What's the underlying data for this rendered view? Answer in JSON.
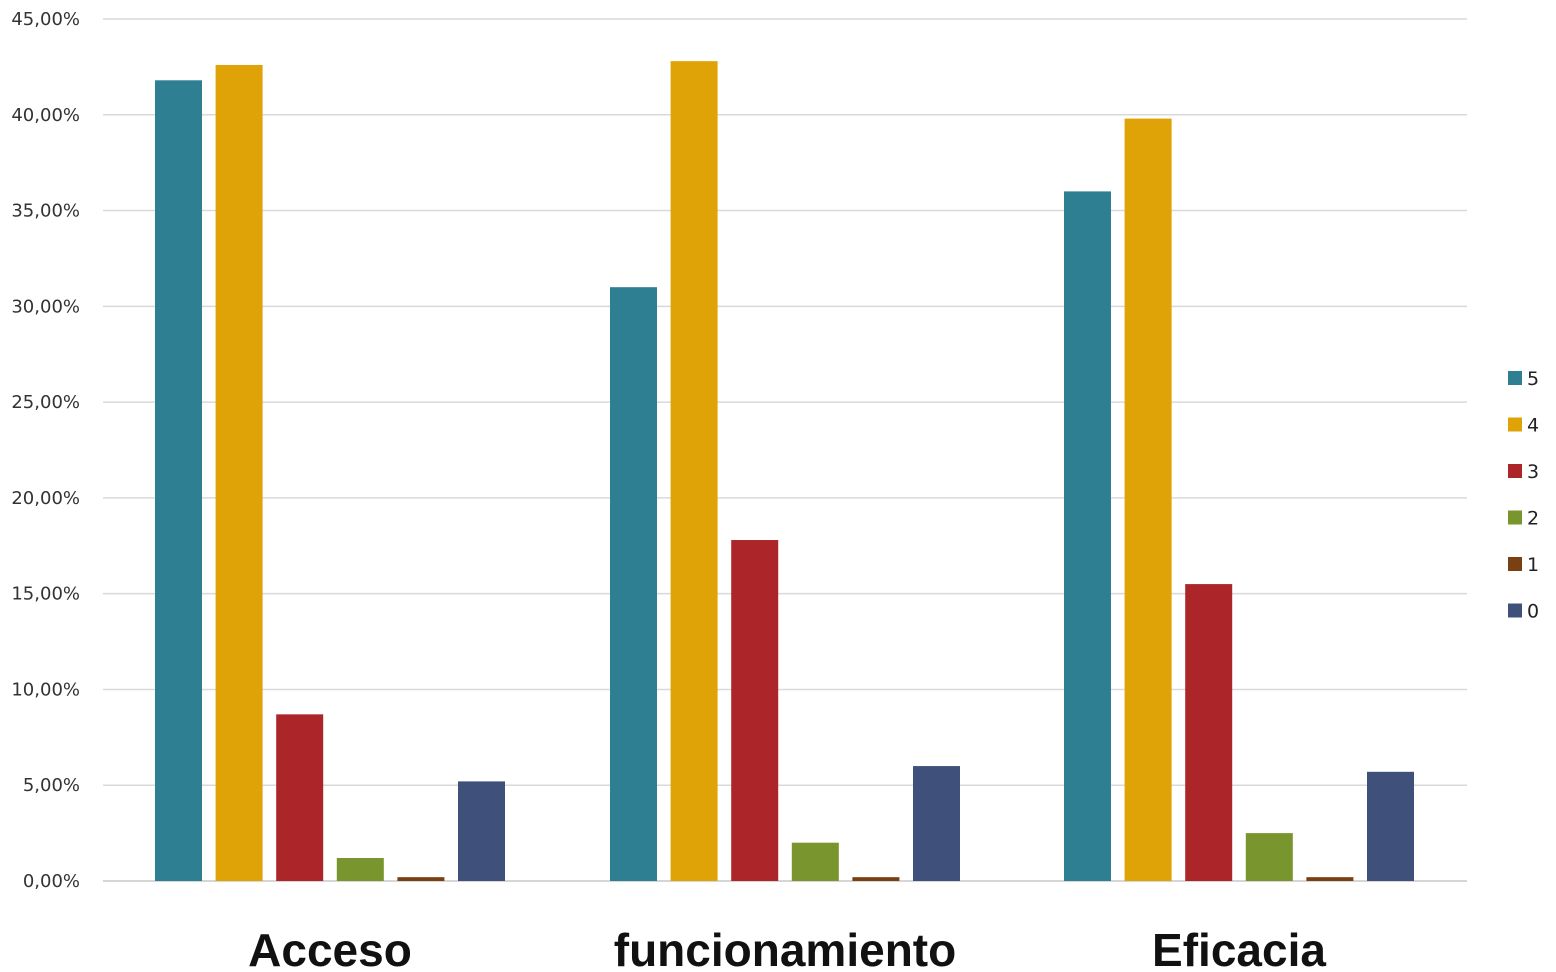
{
  "chart_data": {
    "type": "bar",
    "categories": [
      "Acceso",
      "funcionamiento",
      "Eficacia"
    ],
    "series": [
      {
        "name": "5",
        "color": "#2e7f92",
        "values": [
          41.8,
          31.0,
          36.0
        ]
      },
      {
        "name": "4",
        "color": "#e0a307",
        "values": [
          42.6,
          42.8,
          39.8
        ]
      },
      {
        "name": "3",
        "color": "#ab2529",
        "values": [
          8.7,
          17.8,
          15.5
        ]
      },
      {
        "name": "2",
        "color": "#78952e",
        "values": [
          1.2,
          2.0,
          2.5
        ]
      },
      {
        "name": "1",
        "color": "#7b4011",
        "values": [
          0.2,
          0.2,
          0.2
        ]
      },
      {
        "name": "0",
        "color": "#3f507b",
        "values": [
          5.2,
          6.0,
          5.7
        ]
      }
    ],
    "yticks": [
      "0,00%",
      "5,00%",
      "10,00%",
      "15,00%",
      "20,00%",
      "25,00%",
      "30,00%",
      "35,00%",
      "40,00%",
      "45,00%"
    ],
    "ylim": [
      0,
      45
    ],
    "title": "",
    "xlabel": "",
    "ylabel": "",
    "grid": true,
    "legend_position": "right"
  }
}
